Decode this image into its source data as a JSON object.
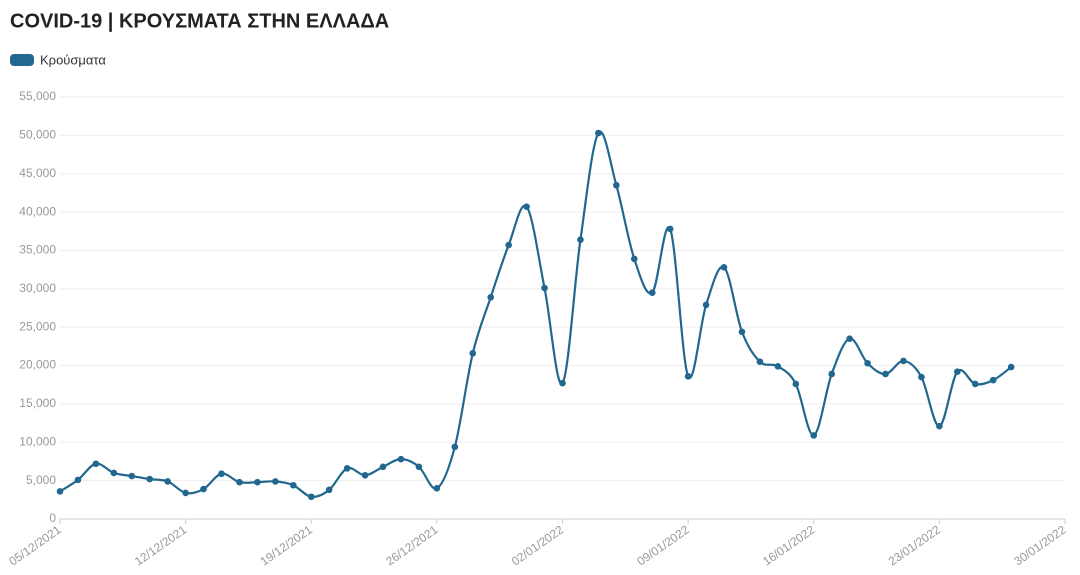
{
  "chart_data": {
    "type": "line",
    "title": "COVID-19 | ΚΡΟΥΣΜΑΤΑ ΣΤΗΝ ΕΛΛΑΔΑ",
    "x": [
      0,
      1,
      2,
      3,
      4,
      5,
      6,
      7,
      8,
      9,
      10,
      11,
      12,
      13,
      14,
      15,
      16,
      17,
      18,
      19,
      20,
      21,
      22,
      23,
      24,
      25,
      26,
      27,
      28,
      29,
      30,
      31,
      32,
      33,
      34,
      35,
      36,
      37,
      38,
      39,
      40,
      41,
      42,
      43,
      44,
      45,
      46,
      47,
      48,
      49,
      50,
      51,
      52,
      53
    ],
    "series": [
      {
        "name": "Κρούσματα",
        "color": "#226790",
        "values": [
          3600,
          5100,
          7200,
          6000,
          5600,
          5200,
          4900,
          3400,
          3900,
          5900,
          4800,
          4800,
          4900,
          4400,
          2900,
          3800,
          6600,
          5700,
          6800,
          7800,
          6800,
          4000,
          9400,
          21600,
          28900,
          35700,
          40700,
          30100,
          17700,
          36400,
          50300,
          43500,
          33900,
          29500,
          37800,
          18600,
          27900,
          32800,
          24400,
          20500,
          19900,
          17600,
          10900,
          18900,
          23500,
          20300,
          18900,
          20600,
          18500,
          12100,
          19200,
          17600,
          18100,
          19800
        ]
      }
    ],
    "xlim": [
      0,
      56
    ],
    "xticks": [
      {
        "value": 0,
        "label": "05/12/2021"
      },
      {
        "value": 7,
        "label": "12/12/2021"
      },
      {
        "value": 14,
        "label": "19/12/2021"
      },
      {
        "value": 21,
        "label": "26/12/2021"
      },
      {
        "value": 28,
        "label": "02/01/2022"
      },
      {
        "value": 35,
        "label": "09/01/2022"
      },
      {
        "value": 42,
        "label": "16/01/2022"
      },
      {
        "value": 49,
        "label": "23/01/2022"
      },
      {
        "value": 56,
        "label": "30/01/2022"
      }
    ],
    "ylim": [
      0,
      55000
    ],
    "yticks": [
      0,
      {
        "value": 5000,
        "label": "5,000"
      },
      {
        "value": 10000,
        "label": "10,000"
      },
      {
        "value": 15000,
        "label": "15,000"
      },
      {
        "value": 20000,
        "label": "20,000"
      },
      {
        "value": 25000,
        "label": "25,000"
      },
      {
        "value": 30000,
        "label": "30,000"
      },
      {
        "value": 35000,
        "label": "35,000"
      },
      {
        "value": 40000,
        "label": "40,000"
      },
      {
        "value": 45000,
        "label": "45,000"
      },
      {
        "value": 50000,
        "label": "50,000"
      },
      {
        "value": 55000,
        "label": "55,000"
      }
    ],
    "grid": true
  }
}
